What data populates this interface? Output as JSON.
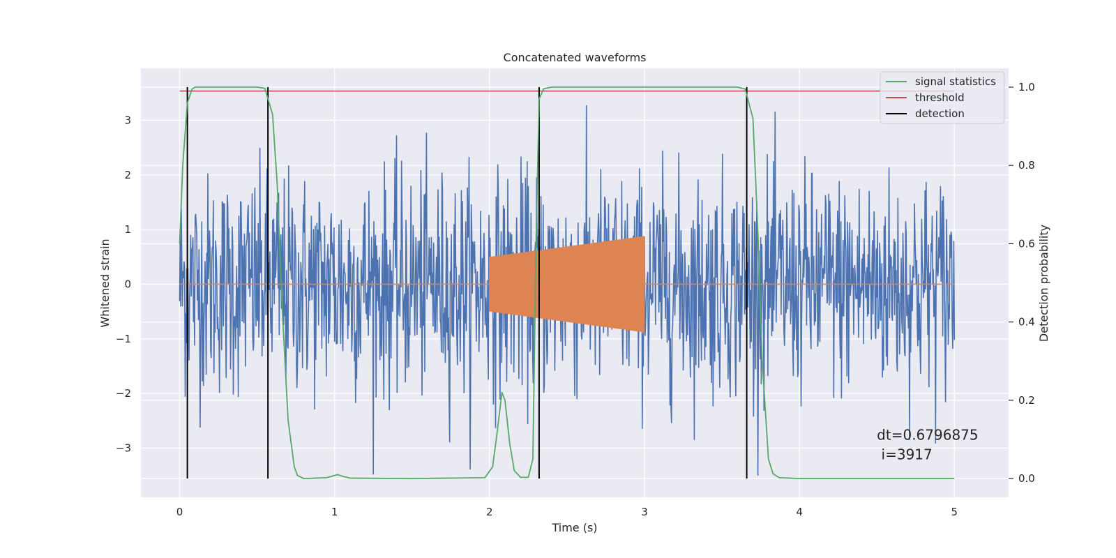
{
  "chart_data": {
    "type": "line",
    "title": "Concatenated waveforms",
    "xlabel": "Time (s)",
    "ylabel_left": "Whitened strain",
    "ylabel_right": "Detection probability",
    "xlim": [
      -0.25,
      5.35
    ],
    "ylim_left": [
      -3.9,
      3.95
    ],
    "ylim_right": [
      -0.048,
      1.048
    ],
    "x_ticks": [
      0,
      1,
      2,
      3,
      4,
      5
    ],
    "y_left_ticks": [
      -3,
      -2,
      -1,
      0,
      1,
      2,
      3
    ],
    "y_right_ticks": [
      0.0,
      0.2,
      0.4,
      0.6,
      0.8,
      1.0
    ],
    "x_tick_labels": [
      "0",
      "1",
      "2",
      "3",
      "4",
      "5"
    ],
    "y_left_tick_labels": [
      "−3",
      "−2",
      "−1",
      "0",
      "1",
      "2",
      "3"
    ],
    "y_right_tick_labels": [
      "0.0",
      "0.2",
      "0.4",
      "0.6",
      "0.8",
      "1.0"
    ],
    "grid": true,
    "legend_position": "top-right",
    "series": [
      {
        "name": "",
        "axis": "left",
        "color": "#4c72b0",
        "kind": "noise",
        "x_range": [
          0,
          5
        ],
        "typical_amplitude": 1.0,
        "peak_range": [
          -3.5,
          3.6
        ]
      },
      {
        "name": "",
        "axis": "left",
        "color": "#dd8452",
        "kind": "chirp",
        "x_range": [
          0,
          5
        ],
        "active_range": [
          2.0,
          3.0
        ],
        "amplitude_start": 0.5,
        "amplitude_end": 0.88
      },
      {
        "name": "signal statistics",
        "axis": "right",
        "color": "#55a868",
        "x": [
          0.0,
          0.02,
          0.05,
          0.08,
          0.1,
          0.3,
          0.5,
          0.55,
          0.6,
          0.63,
          0.66,
          0.7,
          0.74,
          0.76,
          0.8,
          0.95,
          1.0,
          1.02,
          1.05,
          1.1,
          1.5,
          1.97,
          2.02,
          2.05,
          2.08,
          2.1,
          2.13,
          2.16,
          2.2,
          2.25,
          2.28,
          2.3,
          2.32,
          2.35,
          2.4,
          3.0,
          3.6,
          3.65,
          3.7,
          3.73,
          3.76,
          3.8,
          3.83,
          3.87,
          4.0,
          5.0
        ],
        "y": [
          0.6,
          0.8,
          0.96,
          0.995,
          1.0,
          1.0,
          1.0,
          0.997,
          0.93,
          0.75,
          0.45,
          0.15,
          0.03,
          0.008,
          0.0,
          0.002,
          0.008,
          0.01,
          0.006,
          0.001,
          0.0,
          0.002,
          0.03,
          0.12,
          0.22,
          0.2,
          0.09,
          0.02,
          0.003,
          0.003,
          0.05,
          0.6,
          0.97,
          0.996,
          1.0,
          1.0,
          1.0,
          0.995,
          0.92,
          0.65,
          0.3,
          0.05,
          0.012,
          0.002,
          0.0,
          0.0
        ]
      },
      {
        "name": "threshold",
        "axis": "right",
        "color": "#c44e52",
        "x": [
          0,
          5
        ],
        "y": [
          0.99,
          0.99
        ]
      },
      {
        "name": "detection",
        "axis": "right",
        "color": "#000000",
        "kind": "vlines",
        "x": [
          0.05,
          0.57,
          2.32,
          3.66
        ],
        "y_range": [
          0.0,
          1.0
        ]
      }
    ],
    "annotation": {
      "line1": "dt=0.6796875",
      "line2": " i=3917",
      "x": 4.5,
      "y": 0.11
    }
  }
}
